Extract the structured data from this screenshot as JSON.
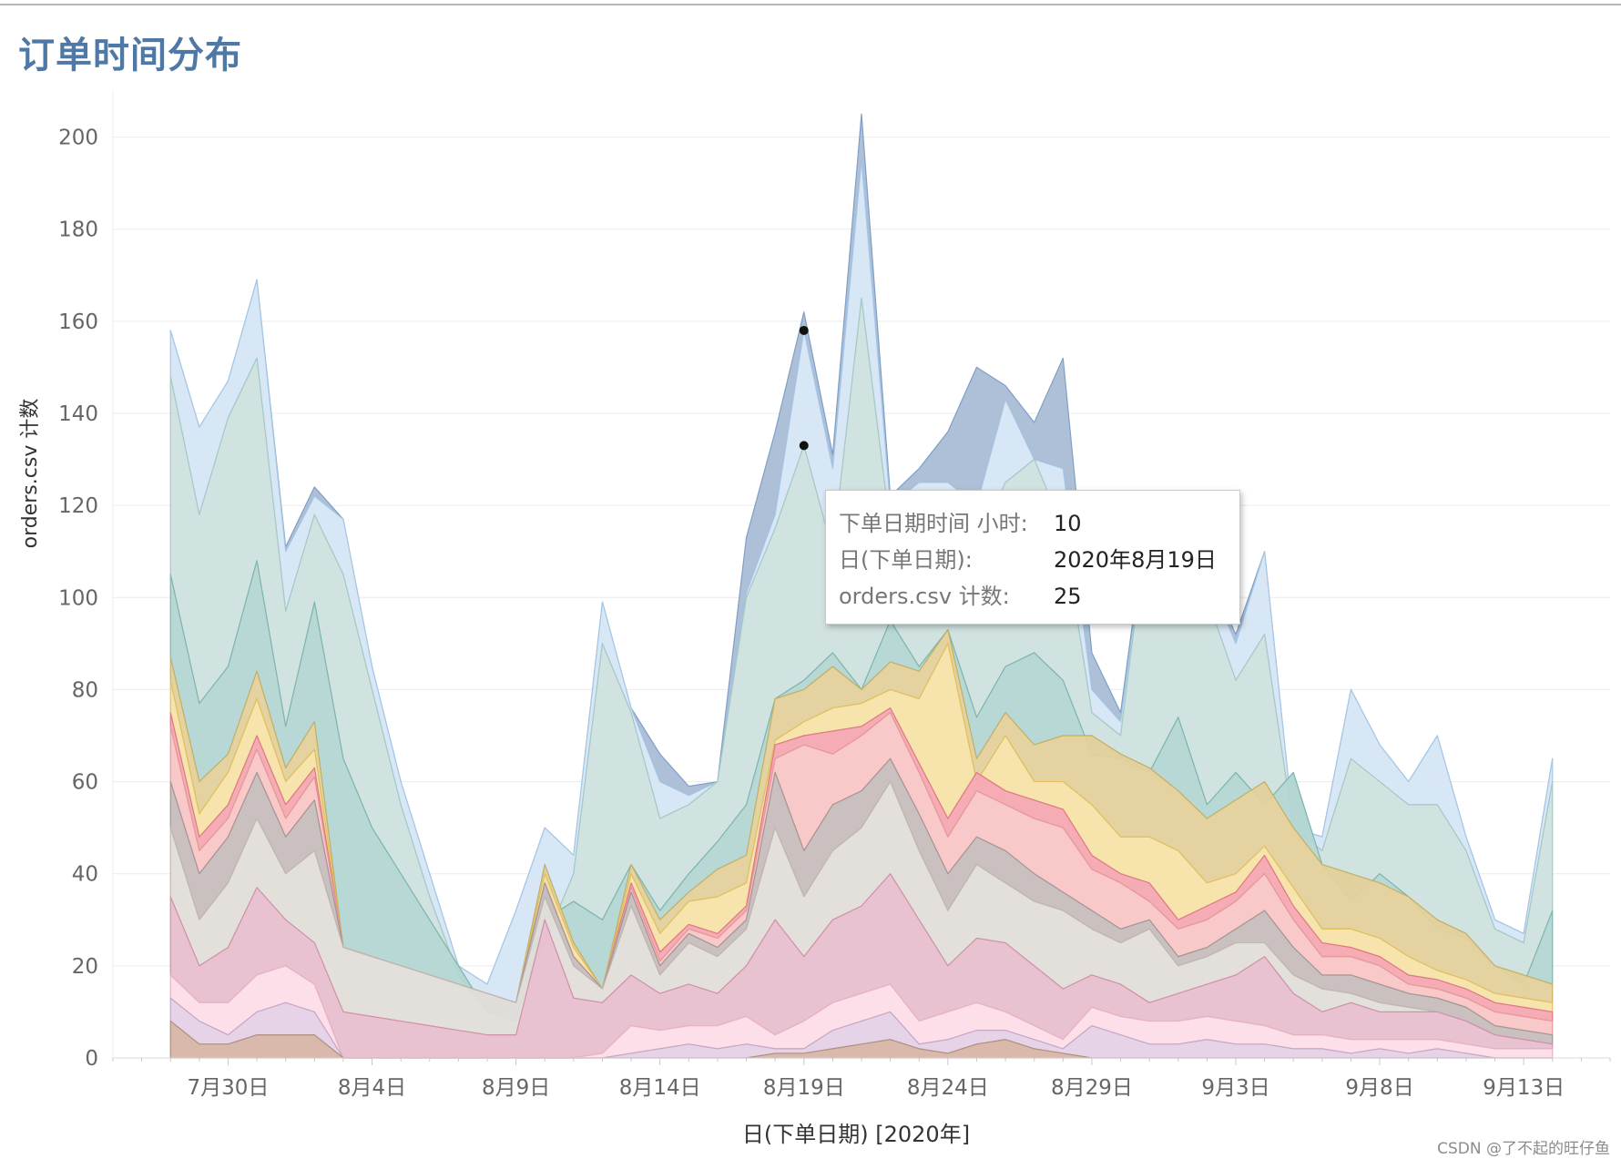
{
  "page": {
    "title": "订单时间分布",
    "credit": "CSDN @了不起的旺仔鱼"
  },
  "tooltip": {
    "rows": [
      {
        "label": "下单日期时间 小时:",
        "value": "10"
      },
      {
        "label": "日(下单日期):",
        "value": "2020年8月19日"
      },
      {
        "label": "orders.csv 计数:",
        "value": "25"
      }
    ]
  },
  "colors": {
    "title": "#4e79a7",
    "palette": [
      "#d7b5a6",
      "#e6d1e6",
      "#fcdde8",
      "#e8bfd0",
      "#e2ddd9",
      "#c7bdbd",
      "#f9c5c5",
      "#f4a8b0",
      "#f5e3a8",
      "#e3d19b",
      "#b3d6d2",
      "#cfe2df",
      "#d6e6f4",
      "#a9bdd5"
    ],
    "strokes": [
      "#b09080",
      "#c4a8c4",
      "#e7b3c4",
      "#d092a8",
      "#c0b8b2",
      "#a39696",
      "#e59a9a",
      "#e07886",
      "#e2c060",
      "#c8b060",
      "#7fb5ad",
      "#a5c9c4",
      "#a7c7e6",
      "#7f9fc6"
    ]
  },
  "chart_data": {
    "type": "area",
    "stacked": true,
    "title": "订单时间分布",
    "xlabel": "日(下单日期) [2020年]",
    "ylabel": "orders.csv 计数",
    "ylim": [
      0,
      210
    ],
    "y_ticks": [
      "0",
      "20",
      "40",
      "60",
      "80",
      "100",
      "120",
      "140",
      "160",
      "180",
      "200"
    ],
    "x_ticks": [
      {
        "label": "7月30日",
        "day": 30
      },
      {
        "label": "8月4日",
        "day": 35
      },
      {
        "label": "8月9日",
        "day": 40
      },
      {
        "label": "8月14日",
        "day": 45
      },
      {
        "label": "8月19日",
        "day": 50
      },
      {
        "label": "8月24日",
        "day": 55
      },
      {
        "label": "8月29日",
        "day": 60
      },
      {
        "label": "9月3日",
        "day": 65
      },
      {
        "label": "9月8日",
        "day": 70
      },
      {
        "label": "9月13日",
        "day": 75
      }
    ],
    "x_note": "day counted from July 1, 2020 (day 31 = Jul 31, day 32 = Aug 1)",
    "days": [
      28,
      29,
      30,
      31,
      32,
      33,
      34,
      35,
      36,
      37,
      38,
      39,
      40,
      41,
      42,
      43,
      44,
      45,
      46,
      47,
      48,
      49,
      50,
      51,
      52,
      53,
      54,
      55,
      56,
      57,
      58,
      59,
      60,
      61,
      62,
      63,
      64,
      65,
      66,
      67,
      68,
      69,
      70,
      71,
      72,
      73,
      74,
      75,
      76
    ],
    "cumulative": [
      [
        8,
        3,
        3,
        5,
        5,
        5,
        0,
        0,
        0,
        0,
        0,
        0,
        0,
        0,
        0,
        0,
        0,
        0,
        0,
        0,
        0,
        1,
        1,
        2,
        3,
        4,
        2,
        1,
        3,
        4,
        2,
        1,
        0,
        0,
        0,
        0,
        0,
        0,
        0,
        0,
        0,
        0,
        0,
        0,
        0,
        0,
        0,
        0,
        0
      ],
      [
        13,
        8,
        5,
        10,
        12,
        10,
        0,
        0,
        0,
        0,
        0,
        0,
        0,
        0,
        0,
        0,
        1,
        2,
        3,
        2,
        3,
        2,
        2,
        6,
        8,
        10,
        3,
        4,
        6,
        6,
        4,
        2,
        7,
        5,
        3,
        3,
        4,
        3,
        3,
        2,
        2,
        1,
        2,
        1,
        2,
        1,
        0,
        0,
        0
      ],
      [
        18,
        12,
        12,
        18,
        20,
        16,
        0,
        0,
        0,
        0,
        0,
        0,
        0,
        0,
        0,
        1,
        7,
        6,
        7,
        7,
        9,
        5,
        8,
        12,
        14,
        16,
        8,
        10,
        12,
        10,
        7,
        4,
        11,
        9,
        8,
        8,
        9,
        8,
        7,
        5,
        5,
        4,
        4,
        4,
        4,
        3,
        2,
        2,
        2
      ],
      [
        35,
        20,
        24,
        37,
        30,
        25,
        10,
        9,
        8,
        7,
        6,
        5,
        5,
        30,
        13,
        12,
        18,
        14,
        16,
        14,
        20,
        30,
        22,
        30,
        33,
        40,
        30,
        20,
        26,
        25,
        20,
        15,
        18,
        16,
        12,
        14,
        16,
        18,
        22,
        14,
        10,
        12,
        10,
        10,
        10,
        8,
        5,
        4,
        3
      ],
      [
        50,
        30,
        38,
        52,
        40,
        45,
        24,
        22,
        20,
        18,
        16,
        14,
        12,
        35,
        20,
        15,
        33,
        18,
        25,
        22,
        28,
        50,
        35,
        45,
        50,
        60,
        45,
        32,
        42,
        38,
        34,
        32,
        28,
        25,
        28,
        20,
        22,
        25,
        25,
        18,
        15,
        14,
        12,
        11,
        10,
        8,
        5,
        4,
        3
      ],
      [
        60,
        40,
        48,
        62,
        48,
        56,
        24,
        22,
        20,
        18,
        16,
        14,
        12,
        38,
        22,
        15,
        36,
        20,
        27,
        24,
        30,
        62,
        45,
        55,
        58,
        65,
        53,
        40,
        48,
        45,
        40,
        36,
        32,
        28,
        30,
        22,
        24,
        28,
        32,
        24,
        18,
        18,
        16,
        14,
        13,
        11,
        7,
        6,
        5
      ],
      [
        72,
        45,
        52,
        67,
        52,
        61,
        24,
        22,
        20,
        18,
        16,
        14,
        12,
        38,
        22,
        15,
        37,
        21,
        28,
        26,
        32,
        65,
        68,
        66,
        70,
        75,
        62,
        48,
        58,
        55,
        52,
        50,
        41,
        38,
        34,
        28,
        30,
        34,
        40,
        30,
        22,
        22,
        20,
        16,
        15,
        13,
        10,
        9,
        8
      ],
      [
        75,
        48,
        55,
        70,
        55,
        63,
        24,
        22,
        20,
        18,
        16,
        14,
        12,
        38,
        22,
        15,
        38,
        23,
        29,
        27,
        33,
        68,
        70,
        71,
        72,
        76,
        64,
        52,
        62,
        58,
        56,
        54,
        44,
        40,
        38,
        30,
        33,
        36,
        44,
        33,
        25,
        24,
        22,
        18,
        17,
        15,
        12,
        11,
        10
      ],
      [
        82,
        53,
        62,
        78,
        60,
        67,
        24,
        22,
        20,
        18,
        16,
        14,
        12,
        40,
        24,
        15,
        40,
        27,
        34,
        35,
        38,
        69,
        73,
        76,
        77,
        80,
        78,
        90,
        60,
        70,
        60,
        60,
        55,
        48,
        48,
        45,
        38,
        40,
        46,
        37,
        28,
        28,
        26,
        22,
        19,
        17,
        14,
        13,
        12
      ],
      [
        87,
        60,
        66,
        84,
        63,
        73,
        24,
        22,
        20,
        18,
        16,
        14,
        12,
        42,
        25,
        15,
        42,
        30,
        36,
        41,
        44,
        78,
        80,
        85,
        80,
        86,
        84,
        93,
        65,
        75,
        68,
        70,
        70,
        66,
        63,
        58,
        52,
        56,
        60,
        50,
        42,
        40,
        38,
        35,
        30,
        27,
        20,
        18,
        16
      ],
      [
        105,
        77,
        85,
        108,
        72,
        99,
        65,
        50,
        40,
        30,
        20,
        10,
        8,
        30,
        34,
        30,
        42,
        32,
        40,
        47,
        55,
        78,
        82,
        88,
        80,
        95,
        85,
        93,
        74,
        85,
        88,
        82,
        66,
        65,
        62,
        74,
        55,
        62,
        55,
        62,
        42,
        34,
        40,
        35,
        28,
        26,
        20,
        16,
        32
      ],
      [
        148,
        118,
        139,
        152,
        97,
        118,
        105,
        80,
        55,
        35,
        18,
        10,
        12,
        25,
        40,
        90,
        75,
        52,
        55,
        60,
        100,
        115,
        133,
        110,
        165,
        115,
        120,
        120,
        112,
        125,
        130,
        115,
        75,
        70,
        120,
        95,
        100,
        82,
        92,
        50,
        45,
        65,
        60,
        55,
        55,
        45,
        28,
        25,
        60
      ],
      [
        158,
        137,
        147,
        169,
        110,
        122,
        117,
        85,
        60,
        40,
        20,
        16,
        32,
        50,
        44,
        99,
        76,
        60,
        57,
        60,
        101,
        118,
        158,
        128,
        195,
        120,
        125,
        125,
        120,
        143,
        130,
        128,
        80,
        73,
        120,
        100,
        105,
        90,
        110,
        50,
        48,
        80,
        68,
        60,
        70,
        48,
        30,
        27,
        65
      ],
      [
        158,
        137,
        147,
        169,
        111,
        124,
        117,
        85,
        60,
        40,
        20,
        16,
        32,
        50,
        44,
        99,
        76,
        66,
        59,
        60,
        113,
        136,
        162,
        131,
        205,
        122,
        128,
        136,
        150,
        146,
        138,
        152,
        88,
        75,
        122,
        102,
        106,
        92,
        110,
        50,
        48,
        80,
        68,
        60,
        70,
        48,
        30,
        27,
        65
      ]
    ]
  }
}
